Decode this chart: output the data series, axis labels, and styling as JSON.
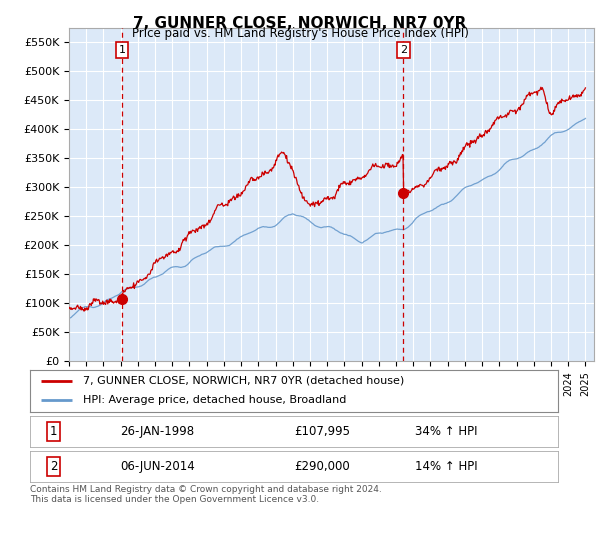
{
  "title": "7, GUNNER CLOSE, NORWICH, NR7 0YR",
  "subtitle": "Price paid vs. HM Land Registry's House Price Index (HPI)",
  "xlim_start": 1995.0,
  "xlim_end": 2025.5,
  "ylim_min": 0,
  "ylim_max": 575000,
  "yticks": [
    0,
    50000,
    100000,
    150000,
    200000,
    250000,
    300000,
    350000,
    400000,
    450000,
    500000,
    550000
  ],
  "ytick_labels": [
    "£0",
    "£50K",
    "£100K",
    "£150K",
    "£200K",
    "£250K",
    "£300K",
    "£350K",
    "£400K",
    "£450K",
    "£500K",
    "£550K"
  ],
  "bg_color": "#dce9f8",
  "grid_color": "#ffffff",
  "sale1_x": 1998.07,
  "sale1_y": 107995,
  "sale2_x": 2014.43,
  "sale2_y": 290000,
  "sale1_label": "26-JAN-1998",
  "sale1_price": "£107,995",
  "sale1_hpi": "34% ↑ HPI",
  "sale2_label": "06-JUN-2014",
  "sale2_price": "£290,000",
  "sale2_hpi": "14% ↑ HPI",
  "legend_line1": "7, GUNNER CLOSE, NORWICH, NR7 0YR (detached house)",
  "legend_line2": "HPI: Average price, detached house, Broadland",
  "footer": "Contains HM Land Registry data © Crown copyright and database right 2024.\nThis data is licensed under the Open Government Licence v3.0.",
  "red_color": "#cc0000",
  "blue_color": "#6699cc",
  "dashed_red": "#cc0000"
}
